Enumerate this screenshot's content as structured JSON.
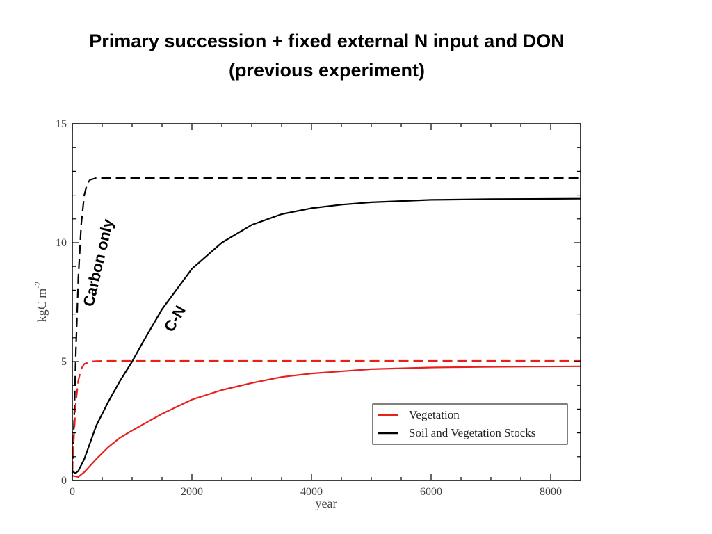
{
  "slide": {
    "title_line1": "Primary succession + fixed external N input and DON",
    "title_line2": "(previous experiment)"
  },
  "chart_data": {
    "type": "line",
    "title": "",
    "xlabel": "year",
    "ylabel": "kgC m",
    "ylabel_superscript": "-2",
    "xlim": [
      0,
      8500
    ],
    "ylim": [
      0,
      15
    ],
    "x_ticks": [
      0,
      2000,
      4000,
      6000,
      8000
    ],
    "y_ticks": [
      0,
      5,
      10,
      15
    ],
    "grid": false,
    "legend": {
      "placement": "bottom-right",
      "entries": [
        {
          "label": "Vegetation",
          "color": "#e8201c"
        },
        {
          "label": "Soil and Vegetation Stocks",
          "color": "#000000"
        }
      ]
    },
    "annotations": [
      {
        "text": "Carbon only",
        "x": 350,
        "y": 8.7
      },
      {
        "text": "C-N",
        "x": 1600,
        "y": 6.5
      }
    ],
    "series": [
      {
        "color": "#000000",
        "style": "dashed",
        "x": [
          0,
          30,
          60,
          100,
          150,
          200,
          250,
          300,
          400,
          600,
          1000,
          2000,
          4000,
          6000,
          8500
        ],
        "y": [
          0.3,
          2.5,
          5.5,
          8.5,
          10.8,
          12.0,
          12.5,
          12.65,
          12.72,
          12.72,
          12.72,
          12.72,
          12.72,
          12.72,
          12.72
        ]
      },
      {
        "color": "#e8201c",
        "style": "dashed",
        "x": [
          0,
          30,
          60,
          100,
          150,
          200,
          300,
          400,
          600,
          1000,
          2000,
          4000,
          6000,
          8500
        ],
        "y": [
          0.4,
          2.0,
          3.3,
          4.2,
          4.7,
          4.9,
          5.0,
          5.02,
          5.03,
          5.03,
          5.03,
          5.03,
          5.03,
          5.03
        ]
      },
      {
        "color": "#000000",
        "style": "solid",
        "x": [
          0,
          50,
          100,
          200,
          300,
          400,
          600,
          800,
          1000,
          1200,
          1500,
          2000,
          2500,
          3000,
          3500,
          4000,
          4500,
          5000,
          6000,
          7000,
          8500
        ],
        "y": [
          0.4,
          0.3,
          0.4,
          0.9,
          1.6,
          2.3,
          3.3,
          4.2,
          5.0,
          5.9,
          7.2,
          8.9,
          10.0,
          10.75,
          11.2,
          11.45,
          11.6,
          11.7,
          11.8,
          11.83,
          11.85
        ]
      },
      {
        "color": "#e8201c",
        "style": "solid",
        "x": [
          0,
          100,
          200,
          400,
          600,
          800,
          1000,
          1500,
          2000,
          2500,
          3000,
          3500,
          4000,
          5000,
          6000,
          7000,
          8500
        ],
        "y": [
          0.2,
          0.15,
          0.35,
          0.9,
          1.4,
          1.8,
          2.1,
          2.8,
          3.4,
          3.8,
          4.1,
          4.35,
          4.5,
          4.68,
          4.75,
          4.78,
          4.8
        ]
      }
    ]
  }
}
